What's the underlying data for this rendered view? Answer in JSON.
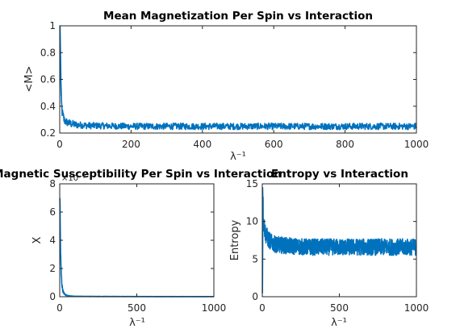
{
  "chart_data": [
    {
      "type": "line",
      "title": "Mean Magnetization Per Spin vs Interaction",
      "xlabel": "λ⁻¹",
      "ylabel": "<M>",
      "xlim": [
        0,
        1000
      ],
      "ylim": [
        0.2,
        1
      ],
      "xticks": [
        0,
        200,
        400,
        600,
        800,
        1000
      ],
      "yticks": [
        0.2,
        0.4,
        0.6,
        0.8,
        1
      ],
      "xtick_labels": [
        "0",
        "200",
        "400",
        "600",
        "800",
        "1000"
      ],
      "ytick_labels": [
        "0.2",
        "0.4",
        "0.6",
        "0.8",
        "1"
      ],
      "color": "#0072bd",
      "series": [
        {
          "x": [
            1,
            2,
            3,
            4,
            5,
            6,
            8,
            10,
            12,
            15,
            20,
            25,
            30,
            40,
            50,
            60,
            80,
            100,
            150,
            200,
            300,
            400,
            500,
            600,
            700,
            800,
            900,
            1000
          ],
          "values": [
            1.0,
            0.78,
            0.6,
            0.48,
            0.42,
            0.38,
            0.34,
            0.32,
            0.3,
            0.29,
            0.28,
            0.275,
            0.27,
            0.265,
            0.26,
            0.26,
            0.255,
            0.255,
            0.252,
            0.25,
            0.25,
            0.25,
            0.25,
            0.25,
            0.25,
            0.25,
            0.25,
            0.25
          ],
          "spread": [
            0,
            0,
            0,
            0.05,
            0.05,
            0.05,
            0.04,
            0.04,
            0.035,
            0.035,
            0.03,
            0.03,
            0.03,
            0.028,
            0.026,
            0.025,
            0.025,
            0.024,
            0.024,
            0.024,
            0.024,
            0.024,
            0.024,
            0.024,
            0.024,
            0.024,
            0.024,
            0.024
          ]
        }
      ]
    },
    {
      "type": "line",
      "title": "Magnetic Susceptibility Per Spin vs Interaction",
      "xlabel": "λ⁻¹",
      "ylabel": "X",
      "exponent_label": "×10⁻³",
      "xlim": [
        0,
        1000
      ],
      "ylim": [
        0,
        8
      ],
      "xticks": [
        0,
        500,
        1000
      ],
      "yticks": [
        0,
        2,
        4,
        6,
        8
      ],
      "xtick_labels": [
        "0",
        "500",
        "1000"
      ],
      "ytick_labels": [
        "0",
        "2",
        "4",
        "6",
        "8"
      ],
      "color": "#0072bd",
      "series": [
        {
          "x": [
            1,
            2,
            3,
            4,
            5,
            6,
            8,
            10,
            12,
            15,
            20,
            25,
            30,
            40,
            50,
            60,
            80,
            100,
            200,
            400,
            600,
            800,
            1000
          ],
          "values": [
            7.0,
            6.2,
            5.2,
            4.3,
            3.6,
            3.0,
            2.2,
            1.6,
            1.2,
            0.8,
            0.45,
            0.3,
            0.2,
            0.12,
            0.08,
            0.06,
            0.04,
            0.03,
            0.02,
            0.015,
            0.012,
            0.01,
            0.01
          ],
          "spread": [
            0.2,
            0.8,
            0.8,
            0.7,
            0.6,
            0.5,
            0.4,
            0.3,
            0.25,
            0.2,
            0.12,
            0.08,
            0.06,
            0.04,
            0.03,
            0.02,
            0.015,
            0.01,
            0.008,
            0.006,
            0.005,
            0.005,
            0.005
          ]
        }
      ]
    },
    {
      "type": "line",
      "title": "Entropy vs Interaction",
      "xlabel": "λ⁻¹",
      "ylabel": "Entropy",
      "xlim": [
        0,
        1000
      ],
      "ylim": [
        0,
        15
      ],
      "xticks": [
        0,
        500,
        1000
      ],
      "yticks": [
        0,
        5,
        10,
        15
      ],
      "xtick_labels": [
        "0",
        "500",
        "1000"
      ],
      "ytick_labels": [
        "0",
        "5",
        "10",
        "15"
      ],
      "color": "#0072bd",
      "series": [
        {
          "x": [
            1,
            2,
            3,
            4,
            5,
            6,
            8,
            10,
            12,
            15,
            20,
            25,
            30,
            40,
            50,
            60,
            80,
            100,
            150,
            200,
            300,
            400,
            500,
            600,
            700,
            800,
            900,
            1000
          ],
          "values": [
            0.5,
            14.5,
            13.5,
            12.8,
            12.0,
            11.2,
            10.5,
            10.0,
            9.5,
            9.0,
            8.5,
            8.2,
            8.0,
            7.6,
            7.4,
            7.2,
            7.0,
            6.9,
            6.8,
            6.7,
            6.6,
            6.6,
            6.6,
            6.6,
            6.6,
            6.6,
            6.6,
            6.6
          ],
          "spread": [
            0,
            0.5,
            1.2,
            1.5,
            1.5,
            1.5,
            1.4,
            1.3,
            1.3,
            1.2,
            1.2,
            1.2,
            1.2,
            1.2,
            1.1,
            1.1,
            1.1,
            1.1,
            1.1,
            1.1,
            1.1,
            1.1,
            1.1,
            1.1,
            1.1,
            1.1,
            1.1,
            1.1
          ]
        }
      ]
    }
  ]
}
